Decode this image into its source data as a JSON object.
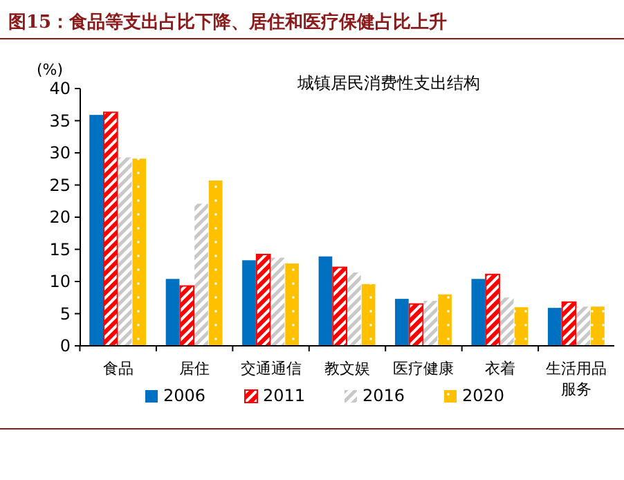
{
  "chart_data": {
    "type": "bar",
    "title": "图15：食品等支出占比下降、居住和医疗保健占比上升",
    "subtitle": "城镇居民消费性支出结构",
    "ylabel": "(%)",
    "categories": [
      "食品",
      "居住",
      "交通通信",
      "教文娱",
      "医疗健康",
      "衣着",
      "生活用品服务"
    ],
    "series": [
      {
        "name": "2006",
        "color": "#0070c0",
        "values": [
          35.9,
          10.4,
          13.3,
          13.9,
          7.3,
          10.4,
          5.9
        ]
      },
      {
        "name": "2011",
        "color": "#ff0000",
        "values": [
          36.3,
          9.3,
          14.2,
          12.2,
          6.5,
          11.1,
          6.8
        ]
      },
      {
        "name": "2016",
        "color": "#c8c8c8",
        "values": [
          29.3,
          22.1,
          13.7,
          11.4,
          7.0,
          7.5,
          6.1
        ]
      },
      {
        "name": "2020",
        "color": "#ffc000",
        "values": [
          29.1,
          25.7,
          12.8,
          9.6,
          8.0,
          6.0,
          6.1
        ]
      }
    ],
    "ylim": [
      0,
      40
    ],
    "yticks": [
      0,
      5,
      10,
      15,
      20,
      25,
      30,
      35,
      40
    ],
    "grid": false,
    "legend": "bottom"
  }
}
